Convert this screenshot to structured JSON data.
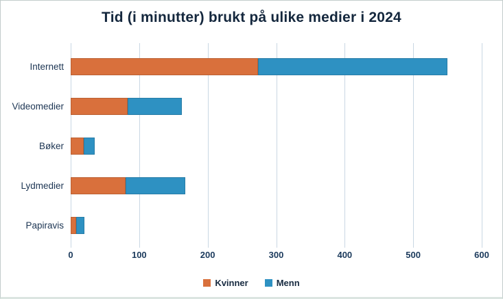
{
  "chart_data": {
    "type": "bar",
    "orientation": "horizontal",
    "stacked": true,
    "title": "Tid (i minutter) brukt på ulike medier i 2024",
    "categories": [
      "Internett",
      "Videomedier",
      "Bøker",
      "Lydmedier",
      "Papiravis"
    ],
    "series": [
      {
        "name": "Kvinner",
        "color": "#D9703C",
        "values": [
          273,
          83,
          19,
          80,
          8
        ]
      },
      {
        "name": "Menn",
        "color": "#2E91C2",
        "values": [
          277,
          79,
          16,
          87,
          12
        ]
      }
    ],
    "xlabel": "",
    "ylabel": "",
    "xlim": [
      0,
      600
    ],
    "x_ticks": [
      0,
      100,
      200,
      300,
      400,
      500,
      600
    ],
    "grid": "vertical-only",
    "legend_position": "bottom",
    "colors": {
      "title_text": "#14273D",
      "axis_text": "#1B3A5C",
      "gridline": "#C9D7E3",
      "frame_border": "#C2CCCB"
    }
  }
}
